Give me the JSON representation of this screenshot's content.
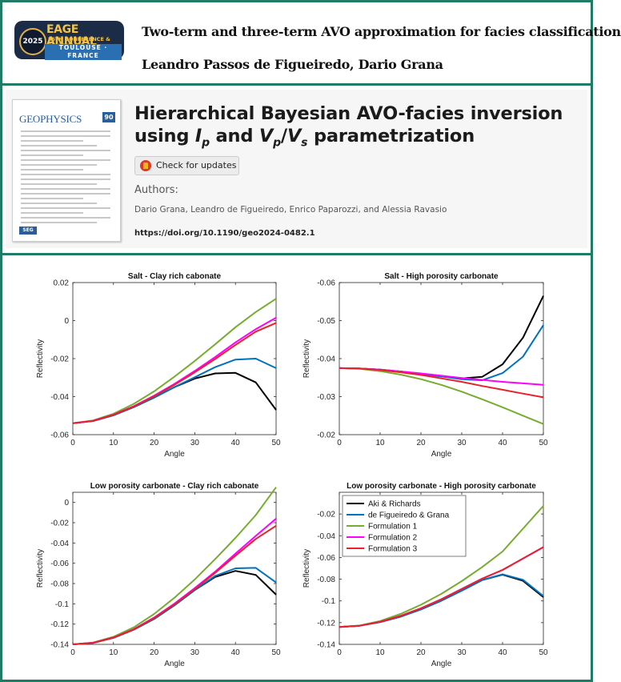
{
  "header": {
    "logo": {
      "year": "2025",
      "title": "EAGE ANNUAL",
      "subtitle": "86TH CONFERENCE & EXHIBITION",
      "location": "TOULOUSE · FRANCE"
    },
    "paper_title": "Two-term and three-term AVO approximation for facies classification",
    "paper_authors": "Leandro Passos de Figueiredo, Dario Grana"
  },
  "journal": {
    "cover_title": "GEOPHYSICS",
    "cover_badge": "90",
    "title_line1": "Hierarchical Bayesian AVO-facies inversion",
    "title_line2_pre": "using ",
    "title_ip": "I",
    "title_ip_sub": "p",
    "title_and": " and ",
    "title_vp": "V",
    "title_vp_sub": "p",
    "title_slash": "/",
    "title_vs": "V",
    "title_vs_sub": "s",
    "title_post": " parametrization",
    "check_updates_label": "Check for updates",
    "authors_label": "Authors:",
    "authors": "Dario Grana, Leandro de Figueiredo, Enrico Paparozzi, and Alessia Ravasio",
    "doi": "https://doi.org/10.1190/geo2024-0482.1"
  },
  "colors": {
    "frame": "#1f7a66",
    "aki_richards": "#000000",
    "de_figueiredo_grana": "#0072bd",
    "formulation_1": "#77ac30",
    "formulation_2": "#ff00ff",
    "formulation_3": "#e8212b"
  },
  "chart_data": [
    {
      "type": "line",
      "title": "Salt - Clay rich cabonate",
      "xlabel": "Angle",
      "ylabel": "Reflectivity",
      "xlim": [
        0,
        50
      ],
      "ylim": [
        -0.06,
        0.02
      ],
      "xticks": [
        0,
        10,
        20,
        30,
        40,
        50
      ],
      "yticks": [
        -0.06,
        -0.04,
        -0.02,
        0,
        0.02
      ],
      "ytick_labels": [
        "-0.06",
        "-0.04",
        "-0.02",
        "0",
        "0.02"
      ],
      "reversed_y": false,
      "x": [
        0,
        5,
        10,
        15,
        20,
        25,
        30,
        35,
        40,
        45,
        50
      ],
      "series": [
        {
          "name": "Aki & Richards",
          "color": "#000000",
          "values": [
            -0.054,
            -0.0528,
            -0.0498,
            -0.0455,
            -0.0405,
            -0.035,
            -0.0305,
            -0.0278,
            -0.0275,
            -0.0325,
            -0.047
          ]
        },
        {
          "name": "de Figueiredo & Grana",
          "color": "#0072bd",
          "values": [
            -0.054,
            -0.0528,
            -0.0498,
            -0.0455,
            -0.0405,
            -0.035,
            -0.0298,
            -0.0245,
            -0.0205,
            -0.02,
            -0.025
          ]
        },
        {
          "name": "Formulation 1",
          "color": "#77ac30",
          "values": [
            -0.054,
            -0.0525,
            -0.049,
            -0.0438,
            -0.0372,
            -0.0295,
            -0.0212,
            -0.0125,
            -0.0035,
            0.0045,
            0.0115
          ]
        },
        {
          "name": "Formulation 2",
          "color": "#ff00ff",
          "values": [
            -0.054,
            -0.0527,
            -0.0495,
            -0.045,
            -0.0395,
            -0.0333,
            -0.0265,
            -0.0192,
            -0.0115,
            -0.0045,
            0.0015
          ]
        },
        {
          "name": "Formulation 3",
          "color": "#e8212b",
          "values": [
            -0.054,
            -0.0527,
            -0.0495,
            -0.0452,
            -0.0398,
            -0.0338,
            -0.0272,
            -0.0202,
            -0.0128,
            -0.0058,
            -0.0012
          ]
        }
      ]
    },
    {
      "type": "line",
      "title": "Salt - High porosity carbonate",
      "xlabel": "Angle",
      "ylabel": "Reflectivity",
      "xlim": [
        0,
        50
      ],
      "ylim": [
        -0.06,
        -0.02
      ],
      "xticks": [
        0,
        10,
        20,
        30,
        40,
        50
      ],
      "yticks": [
        -0.06,
        -0.05,
        -0.04,
        -0.03,
        -0.02
      ],
      "ytick_labels": [
        "-0.06",
        "-0.05",
        "-0.04",
        "-0.03",
        "-0.02"
      ],
      "reversed_y": true,
      "x": [
        0,
        5,
        10,
        15,
        20,
        25,
        30,
        35,
        40,
        45,
        50
      ],
      "series": [
        {
          "name": "Aki & Richards",
          "color": "#000000",
          "values": [
            -0.0375,
            -0.0374,
            -0.0371,
            -0.0366,
            -0.036,
            -0.0353,
            -0.0348,
            -0.0352,
            -0.0385,
            -0.0455,
            -0.0565
          ]
        },
        {
          "name": "de Figueiredo & Grana",
          "color": "#0072bd",
          "values": [
            -0.0375,
            -0.0374,
            -0.0371,
            -0.0366,
            -0.036,
            -0.0353,
            -0.0346,
            -0.0343,
            -0.0362,
            -0.0405,
            -0.0488
          ]
        },
        {
          "name": "Formulation 1",
          "color": "#77ac30",
          "values": [
            -0.0375,
            -0.0373,
            -0.0367,
            -0.0358,
            -0.0346,
            -0.0331,
            -0.0313,
            -0.0293,
            -0.0272,
            -0.025,
            -0.0228
          ]
        },
        {
          "name": "Formulation 2",
          "color": "#ff00ff",
          "values": [
            -0.0375,
            -0.0374,
            -0.0371,
            -0.0366,
            -0.0361,
            -0.0355,
            -0.0349,
            -0.0344,
            -0.0339,
            -0.0335,
            -0.0331
          ]
        },
        {
          "name": "Formulation 3",
          "color": "#e8212b",
          "values": [
            -0.0375,
            -0.0374,
            -0.037,
            -0.0364,
            -0.0357,
            -0.0348,
            -0.0339,
            -0.0328,
            -0.0318,
            -0.0308,
            -0.0298
          ]
        }
      ]
    },
    {
      "type": "line",
      "title": "Low porosity carbonate - Clay rich cabonate",
      "xlabel": "Angle",
      "ylabel": "Reflectivity",
      "xlim": [
        0,
        50
      ],
      "ylim": [
        -0.14,
        0.01
      ],
      "xticks": [
        0,
        10,
        20,
        30,
        40,
        50
      ],
      "yticks": [
        -0.14,
        -0.12,
        -0.1,
        -0.08,
        -0.06,
        -0.04,
        -0.02,
        0
      ],
      "ytick_labels": [
        "-0.14",
        "-0.12",
        "-0.1",
        "-0.08",
        "-0.06",
        "-0.04",
        "-0.02",
        "0"
      ],
      "reversed_y": false,
      "x": [
        0,
        5,
        10,
        15,
        20,
        25,
        30,
        35,
        40,
        45,
        50
      ],
      "series": [
        {
          "name": "Aki & Richards",
          "color": "#000000",
          "values": [
            -0.14,
            -0.1385,
            -0.1335,
            -0.1255,
            -0.115,
            -0.1015,
            -0.0865,
            -0.0735,
            -0.0675,
            -0.0715,
            -0.091
          ]
        },
        {
          "name": "de Figueiredo & Grana",
          "color": "#0072bd",
          "values": [
            -0.14,
            -0.1385,
            -0.1335,
            -0.1255,
            -0.115,
            -0.1015,
            -0.0865,
            -0.0725,
            -0.065,
            -0.0645,
            -0.079
          ]
        },
        {
          "name": "Formulation 1",
          "color": "#77ac30",
          "values": [
            -0.14,
            -0.1382,
            -0.1325,
            -0.1232,
            -0.11,
            -0.094,
            -0.076,
            -0.056,
            -0.035,
            -0.0125,
            0.015
          ]
        },
        {
          "name": "Formulation 2",
          "color": "#ff00ff",
          "values": [
            -0.14,
            -0.1384,
            -0.1332,
            -0.125,
            -0.1135,
            -0.0998,
            -0.0845,
            -0.0683,
            -0.0505,
            -0.033,
            -0.016
          ]
        },
        {
          "name": "Formulation 3",
          "color": "#e8212b",
          "values": [
            -0.14,
            -0.1384,
            -0.1333,
            -0.1252,
            -0.114,
            -0.1005,
            -0.0855,
            -0.0695,
            -0.0525,
            -0.036,
            -0.023
          ]
        }
      ]
    },
    {
      "type": "line",
      "title": "Low porosity carbonate - High porosity carbonate",
      "xlabel": "Angle",
      "ylabel": "Reflectivity",
      "xlim": [
        0,
        50
      ],
      "ylim": [
        -0.14,
        0
      ],
      "xticks": [
        0,
        10,
        20,
        30,
        40,
        50
      ],
      "yticks": [
        -0.14,
        -0.12,
        -0.1,
        -0.08,
        -0.06,
        -0.04,
        -0.02
      ],
      "ytick_labels": [
        "-0.14",
        "-0.12",
        "-0.1",
        "-0.08",
        "-0.06",
        "-0.04",
        "-0.02"
      ],
      "reversed_y": false,
      "legend": "top-left",
      "x": [
        0,
        5,
        10,
        15,
        20,
        25,
        30,
        35,
        40,
        45,
        50
      ],
      "series": [
        {
          "name": "Aki & Richards",
          "color": "#000000",
          "values": [
            -0.124,
            -0.1228,
            -0.1195,
            -0.1145,
            -0.1078,
            -0.0998,
            -0.0905,
            -0.0808,
            -0.0758,
            -0.0815,
            -0.0965
          ]
        },
        {
          "name": "de Figueiredo & Grana",
          "color": "#0072bd",
          "values": [
            -0.124,
            -0.1228,
            -0.1195,
            -0.1145,
            -0.1078,
            -0.0998,
            -0.0905,
            -0.0808,
            -0.0755,
            -0.0805,
            -0.0955
          ]
        },
        {
          "name": "Formulation 1",
          "color": "#77ac30",
          "values": [
            -0.124,
            -0.1226,
            -0.1185,
            -0.112,
            -0.1035,
            -0.0935,
            -0.0818,
            -0.0688,
            -0.0545,
            -0.0335,
            -0.0125
          ]
        },
        {
          "name": "Formulation 2",
          "color": "#ff00ff",
          "values": [
            -0.124,
            -0.1228,
            -0.1192,
            -0.1138,
            -0.1068,
            -0.0985,
            -0.089,
            -0.0795,
            -0.0715,
            -0.061,
            -0.0505
          ]
        },
        {
          "name": "Formulation 3",
          "color": "#e8212b",
          "values": [
            -0.124,
            -0.1228,
            -0.1192,
            -0.1138,
            -0.1068,
            -0.0985,
            -0.089,
            -0.0795,
            -0.0715,
            -0.061,
            -0.0505
          ]
        }
      ]
    }
  ]
}
